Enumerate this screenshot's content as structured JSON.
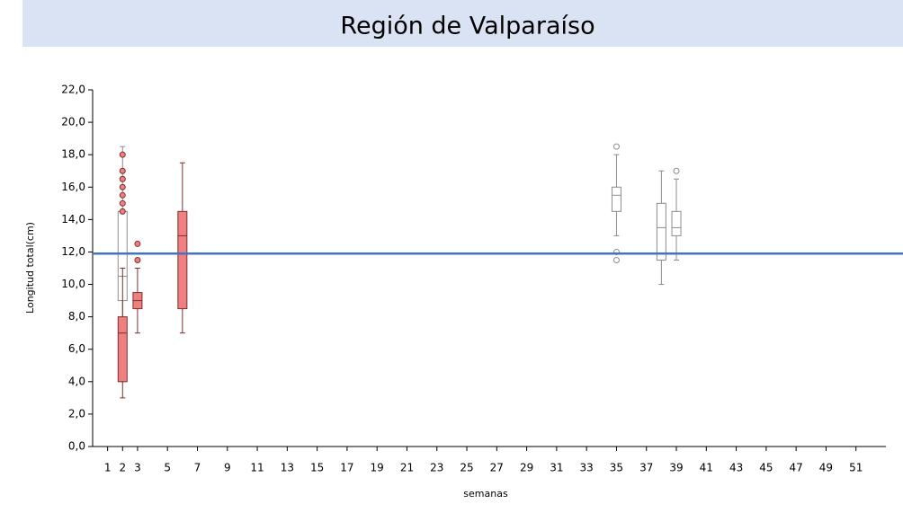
{
  "chart_data": {
    "type": "box",
    "title": "Región de Valparaíso",
    "ylabel": "Longitud total(cm)",
    "xlabel": "semanas",
    "xlim": [
      0,
      53
    ],
    "xticks": [
      1,
      2,
      3,
      5,
      7,
      9,
      11,
      13,
      15,
      17,
      19,
      21,
      23,
      25,
      27,
      29,
      31,
      33,
      35,
      37,
      39,
      41,
      43,
      45,
      47,
      49,
      51
    ],
    "ylim": [
      0,
      22
    ],
    "yticks": [
      {
        "value": 0,
        "label": "0,0"
      },
      {
        "value": 2,
        "label": "2,0"
      },
      {
        "value": 4,
        "label": "4,0"
      },
      {
        "value": 6,
        "label": "6,0"
      },
      {
        "value": 8,
        "label": "8,0"
      },
      {
        "value": 10,
        "label": "10,0"
      },
      {
        "value": 12,
        "label": "12,0"
      },
      {
        "value": 14,
        "label": "14,0"
      },
      {
        "value": 16,
        "label": "16,0"
      },
      {
        "value": 18,
        "label": "18,0"
      },
      {
        "value": 20,
        "label": "20,0"
      },
      {
        "value": 22,
        "label": "22,0"
      }
    ],
    "reference_line": 11.9,
    "reference_color": "#4472c4",
    "series": [
      {
        "color": "#ffffff",
        "edge": "#8c8c8c",
        "boxes": [
          {
            "x": 2,
            "low": 4,
            "q1": 9,
            "median": 10.5,
            "q3": 14.5,
            "high": 18.5,
            "outliers": []
          },
          {
            "x": 35,
            "low": 13,
            "q1": 14.5,
            "median": 15.5,
            "q3": 16,
            "high": 18,
            "outliers": [
              18.5,
              12,
              11.5
            ]
          },
          {
            "x": 38,
            "low": 10,
            "q1": 11.5,
            "median": 13.5,
            "q3": 15,
            "high": 17,
            "outliers": []
          },
          {
            "x": 39,
            "low": 11.5,
            "q1": 13,
            "median": 13.5,
            "q3": 14.5,
            "high": 16.5,
            "outliers": [
              17
            ]
          }
        ]
      },
      {
        "color": "#f08080",
        "edge": "#7a2e2e",
        "boxes": [
          {
            "x": 2,
            "low": 3,
            "q1": 4,
            "median": 7,
            "q3": 8,
            "high": 11,
            "outliers": [
              14.5,
              15,
              15.5,
              16,
              16.5,
              17,
              18
            ]
          },
          {
            "x": 3,
            "low": 7,
            "q1": 8.5,
            "median": 9,
            "q3": 9.5,
            "high": 11,
            "outliers": [
              11.5,
              12.5
            ]
          },
          {
            "x": 6,
            "low": 7,
            "q1": 8.5,
            "median": 13,
            "q3": 14.5,
            "high": 17.5,
            "outliers": []
          }
        ]
      }
    ]
  }
}
